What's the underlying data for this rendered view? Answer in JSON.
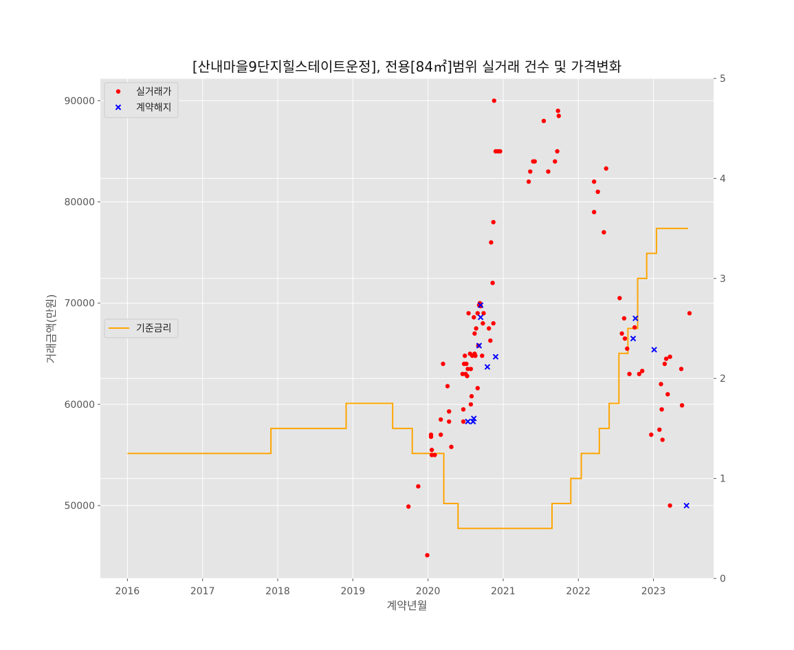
{
  "chart_data": {
    "type": "scatter",
    "title": "[산내마을9단지힐스테이트운정], 전용[84㎡]범위 실거래 건수 및 가격변화",
    "xlabel": "계약년월",
    "ylabel": "거래금액(만원)",
    "xlim": [
      2015.64,
      2023.8
    ],
    "ylim": [
      42800,
      92200
    ],
    "y2lim": [
      0,
      5
    ],
    "grid": true,
    "x_ticks": [
      2016,
      2017,
      2018,
      2019,
      2020,
      2021,
      2022,
      2023
    ],
    "x_tick_labels": [
      "2016",
      "2017",
      "2018",
      "2019",
      "2020",
      "2021",
      "2022",
      "2023"
    ],
    "y_ticks": [
      50000,
      60000,
      70000,
      80000,
      90000
    ],
    "y_tick_labels": [
      "50000",
      "60000",
      "70000",
      "80000",
      "90000"
    ],
    "y2_ticks": [
      0,
      1,
      2,
      3,
      4,
      5
    ],
    "y2_tick_labels": [
      "0",
      "1",
      "2",
      "3",
      "4",
      "5"
    ],
    "legend_top": {
      "placement": "upper-left",
      "entries": [
        {
          "label": "실거래가",
          "color": "#ff0000",
          "marker": "dot"
        },
        {
          "label": "계약해지",
          "color": "#0000ff",
          "marker": "x"
        }
      ]
    },
    "legend_mid": {
      "placement": "center-left",
      "entries": [
        {
          "label": "기준금리",
          "color": "#ffa500",
          "marker": "line"
        }
      ]
    },
    "series": [
      {
        "name": "실거래가",
        "type": "scatter",
        "color": "#ff0000",
        "points": [
          [
            2019.74,
            49900
          ],
          [
            2019.87,
            51900
          ],
          [
            2019.99,
            45100
          ],
          [
            2020.04,
            56800
          ],
          [
            2020.04,
            57000
          ],
          [
            2020.05,
            55500
          ],
          [
            2020.05,
            55000
          ],
          [
            2020.09,
            55000
          ],
          [
            2020.17,
            57000
          ],
          [
            2020.17,
            58500
          ],
          [
            2020.2,
            64000
          ],
          [
            2020.26,
            61800
          ],
          [
            2020.28,
            58300
          ],
          [
            2020.28,
            59300
          ],
          [
            2020.31,
            55800
          ],
          [
            2020.46,
            63000
          ],
          [
            2020.47,
            58300
          ],
          [
            2020.47,
            59500
          ],
          [
            2020.48,
            64000
          ],
          [
            2020.49,
            64800
          ],
          [
            2020.5,
            63000
          ],
          [
            2020.51,
            64000
          ],
          [
            2020.52,
            62800
          ],
          [
            2020.53,
            63500
          ],
          [
            2020.54,
            69000
          ],
          [
            2020.56,
            65000
          ],
          [
            2020.57,
            63500
          ],
          [
            2020.57,
            60000
          ],
          [
            2020.58,
            60800
          ],
          [
            2020.59,
            64800
          ],
          [
            2020.61,
            68600
          ],
          [
            2020.62,
            65000
          ],
          [
            2020.62,
            67000
          ],
          [
            2020.63,
            64800
          ],
          [
            2020.64,
            67500
          ],
          [
            2020.66,
            61600
          ],
          [
            2020.66,
            69000
          ],
          [
            2020.67,
            65800
          ],
          [
            2020.68,
            69800
          ],
          [
            2020.69,
            70000
          ],
          [
            2020.7,
            69700
          ],
          [
            2020.72,
            64800
          ],
          [
            2020.73,
            68000
          ],
          [
            2020.74,
            69000
          ],
          [
            2020.81,
            67500
          ],
          [
            2020.83,
            66300
          ],
          [
            2020.84,
            76000
          ],
          [
            2020.86,
            72000
          ],
          [
            2020.87,
            68000
          ],
          [
            2020.87,
            78000
          ],
          [
            2020.88,
            90000
          ],
          [
            2020.9,
            85000
          ],
          [
            2020.93,
            85000
          ],
          [
            2020.96,
            85000
          ],
          [
            2021.34,
            82000
          ],
          [
            2021.36,
            83000
          ],
          [
            2021.4,
            84000
          ],
          [
            2021.42,
            84000
          ],
          [
            2021.54,
            88000
          ],
          [
            2021.6,
            83000
          ],
          [
            2021.69,
            84000
          ],
          [
            2021.72,
            85000
          ],
          [
            2021.73,
            89000
          ],
          [
            2021.74,
            88500
          ],
          [
            2022.21,
            82000
          ],
          [
            2022.21,
            79000
          ],
          [
            2022.26,
            81000
          ],
          [
            2022.34,
            77000
          ],
          [
            2022.37,
            83300
          ],
          [
            2022.55,
            70500
          ],
          [
            2022.58,
            67000
          ],
          [
            2022.61,
            68500
          ],
          [
            2022.62,
            66500
          ],
          [
            2022.65,
            65500
          ],
          [
            2022.68,
            63000
          ],
          [
            2022.75,
            67600
          ],
          [
            2022.81,
            63000
          ],
          [
            2022.85,
            63300
          ],
          [
            2022.97,
            57000
          ],
          [
            2023.08,
            57500
          ],
          [
            2023.1,
            62000
          ],
          [
            2023.11,
            59500
          ],
          [
            2023.12,
            56500
          ],
          [
            2023.15,
            64000
          ],
          [
            2023.17,
            64500
          ],
          [
            2023.19,
            61000
          ],
          [
            2023.22,
            64700
          ],
          [
            2023.22,
            50000
          ],
          [
            2023.37,
            63500
          ],
          [
            2023.38,
            59900
          ],
          [
            2023.48,
            69000
          ]
        ]
      },
      {
        "name": "계약해지",
        "type": "scatter",
        "color": "#0000ff",
        "points": [
          [
            2020.53,
            58300
          ],
          [
            2020.6,
            58300
          ],
          [
            2020.61,
            58600
          ],
          [
            2020.68,
            65800
          ],
          [
            2020.7,
            69800
          ],
          [
            2020.7,
            68600
          ],
          [
            2020.79,
            63700
          ],
          [
            2020.9,
            64700
          ],
          [
            2022.73,
            66500
          ],
          [
            2022.76,
            68500
          ],
          [
            2023.01,
            65400
          ],
          [
            2023.44,
            50000
          ]
        ]
      },
      {
        "name": "기준금리",
        "type": "step",
        "axis": "right",
        "color": "#ffa500",
        "points": [
          [
            2016.0,
            1.25
          ],
          [
            2017.91,
            1.5
          ],
          [
            2018.91,
            1.75
          ],
          [
            2019.53,
            1.5
          ],
          [
            2019.79,
            1.25
          ],
          [
            2020.21,
            0.75
          ],
          [
            2020.4,
            0.5
          ],
          [
            2021.65,
            0.75
          ],
          [
            2021.9,
            1.0
          ],
          [
            2022.04,
            1.25
          ],
          [
            2022.28,
            1.5
          ],
          [
            2022.41,
            1.75
          ],
          [
            2022.54,
            2.25
          ],
          [
            2022.66,
            2.5
          ],
          [
            2022.79,
            3.0
          ],
          [
            2022.91,
            3.25
          ],
          [
            2023.04,
            3.5
          ],
          [
            2023.46,
            3.5
          ]
        ]
      }
    ]
  }
}
